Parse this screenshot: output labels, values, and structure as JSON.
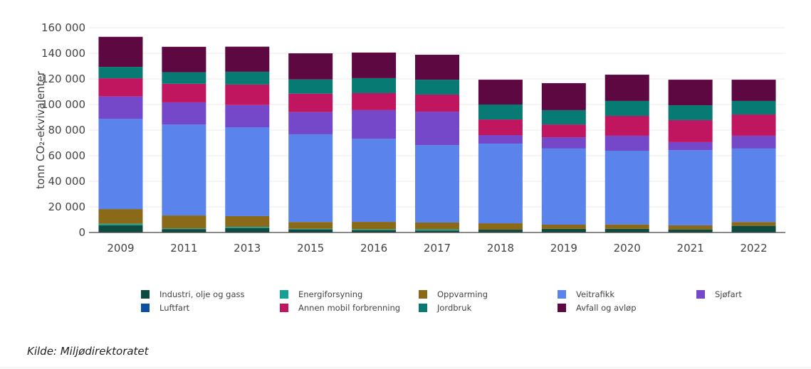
{
  "chart_data": {
    "type": "bar",
    "stacked": true,
    "title": "",
    "xlabel": "",
    "ylabel": "tonn CO₂-ekvivalenter",
    "ylim": [
      0,
      160000
    ],
    "yticks": [
      0,
      20000,
      40000,
      60000,
      80000,
      100000,
      120000,
      140000,
      160000
    ],
    "ytick_labels": [
      "0",
      "20 000",
      "40 000",
      "60 000",
      "80 000",
      "100 000",
      "120 000",
      "140 000",
      "160 000"
    ],
    "grid": true,
    "legend_position": "bottom",
    "categories": [
      "2009",
      "2011",
      "2013",
      "2015",
      "2016",
      "2017",
      "2018",
      "2019",
      "2020",
      "2021",
      "2022"
    ],
    "series": [
      {
        "name": "Industri, olje og gass",
        "color": "#0d4a40",
        "values": [
          5600,
          2700,
          3500,
          2400,
          1700,
          1500,
          2200,
          2900,
          2900,
          2400,
          5200
        ]
      },
      {
        "name": "Energiforsyning",
        "color": "#14a094",
        "values": [
          1200,
          500,
          900,
          500,
          700,
          900,
          0,
          0,
          0,
          0,
          0
        ]
      },
      {
        "name": "Luftfart",
        "color": "#0d4fa0",
        "values": [
          0,
          0,
          0,
          0,
          0,
          0,
          0,
          0,
          0,
          0,
          0
        ]
      },
      {
        "name": "Oppvarming",
        "color": "#8a6a19",
        "values": [
          11500,
          10100,
          8400,
          5300,
          5900,
          5400,
          5000,
          3200,
          3400,
          3200,
          3000
        ]
      },
      {
        "name": "Veitrafikk",
        "color": "#5b83ec",
        "values": [
          70600,
          71100,
          69400,
          68500,
          65000,
          60500,
          62200,
          59500,
          57600,
          58800,
          57400
        ]
      },
      {
        "name": "Sjøfart",
        "color": "#7448c8",
        "values": [
          17400,
          17300,
          17400,
          17400,
          22300,
          26100,
          6700,
          8800,
          11700,
          6200,
          10000
        ]
      },
      {
        "name": "Annen mobil forbrenning",
        "color": "#c0155f",
        "values": [
          14200,
          14500,
          16000,
          14400,
          13300,
          13400,
          12200,
          10000,
          15500,
          17200,
          16600
        ]
      },
      {
        "name": "Jordbruk",
        "color": "#077a74",
        "values": [
          8900,
          9100,
          10000,
          11100,
          11700,
          11600,
          11700,
          11200,
          11700,
          11600,
          10600
        ]
      },
      {
        "name": "Avfall og avløp",
        "color": "#5e0842",
        "values": [
          23500,
          19800,
          19600,
          20400,
          20000,
          19500,
          19400,
          21100,
          20500,
          20000,
          16600
        ]
      }
    ]
  },
  "legend": {
    "items": [
      {
        "label": "Industri, olje og gass",
        "color": "#0d4a40"
      },
      {
        "label": "Energiforsyning",
        "color": "#14a094"
      },
      {
        "label": "Oppvarming",
        "color": "#8a6a19"
      },
      {
        "label": "Veitrafikk",
        "color": "#5b83ec"
      },
      {
        "label": "Sjøfart",
        "color": "#7448c8"
      },
      {
        "label": "Luftfart",
        "color": "#0d4fa0"
      },
      {
        "label": "Annen mobil forbrenning",
        "color": "#c0155f"
      },
      {
        "label": "Jordbruk",
        "color": "#077a74"
      },
      {
        "label": "Avfall og avløp",
        "color": "#5e0842"
      }
    ]
  },
  "source": "Kilde: Miljødirektoratet"
}
